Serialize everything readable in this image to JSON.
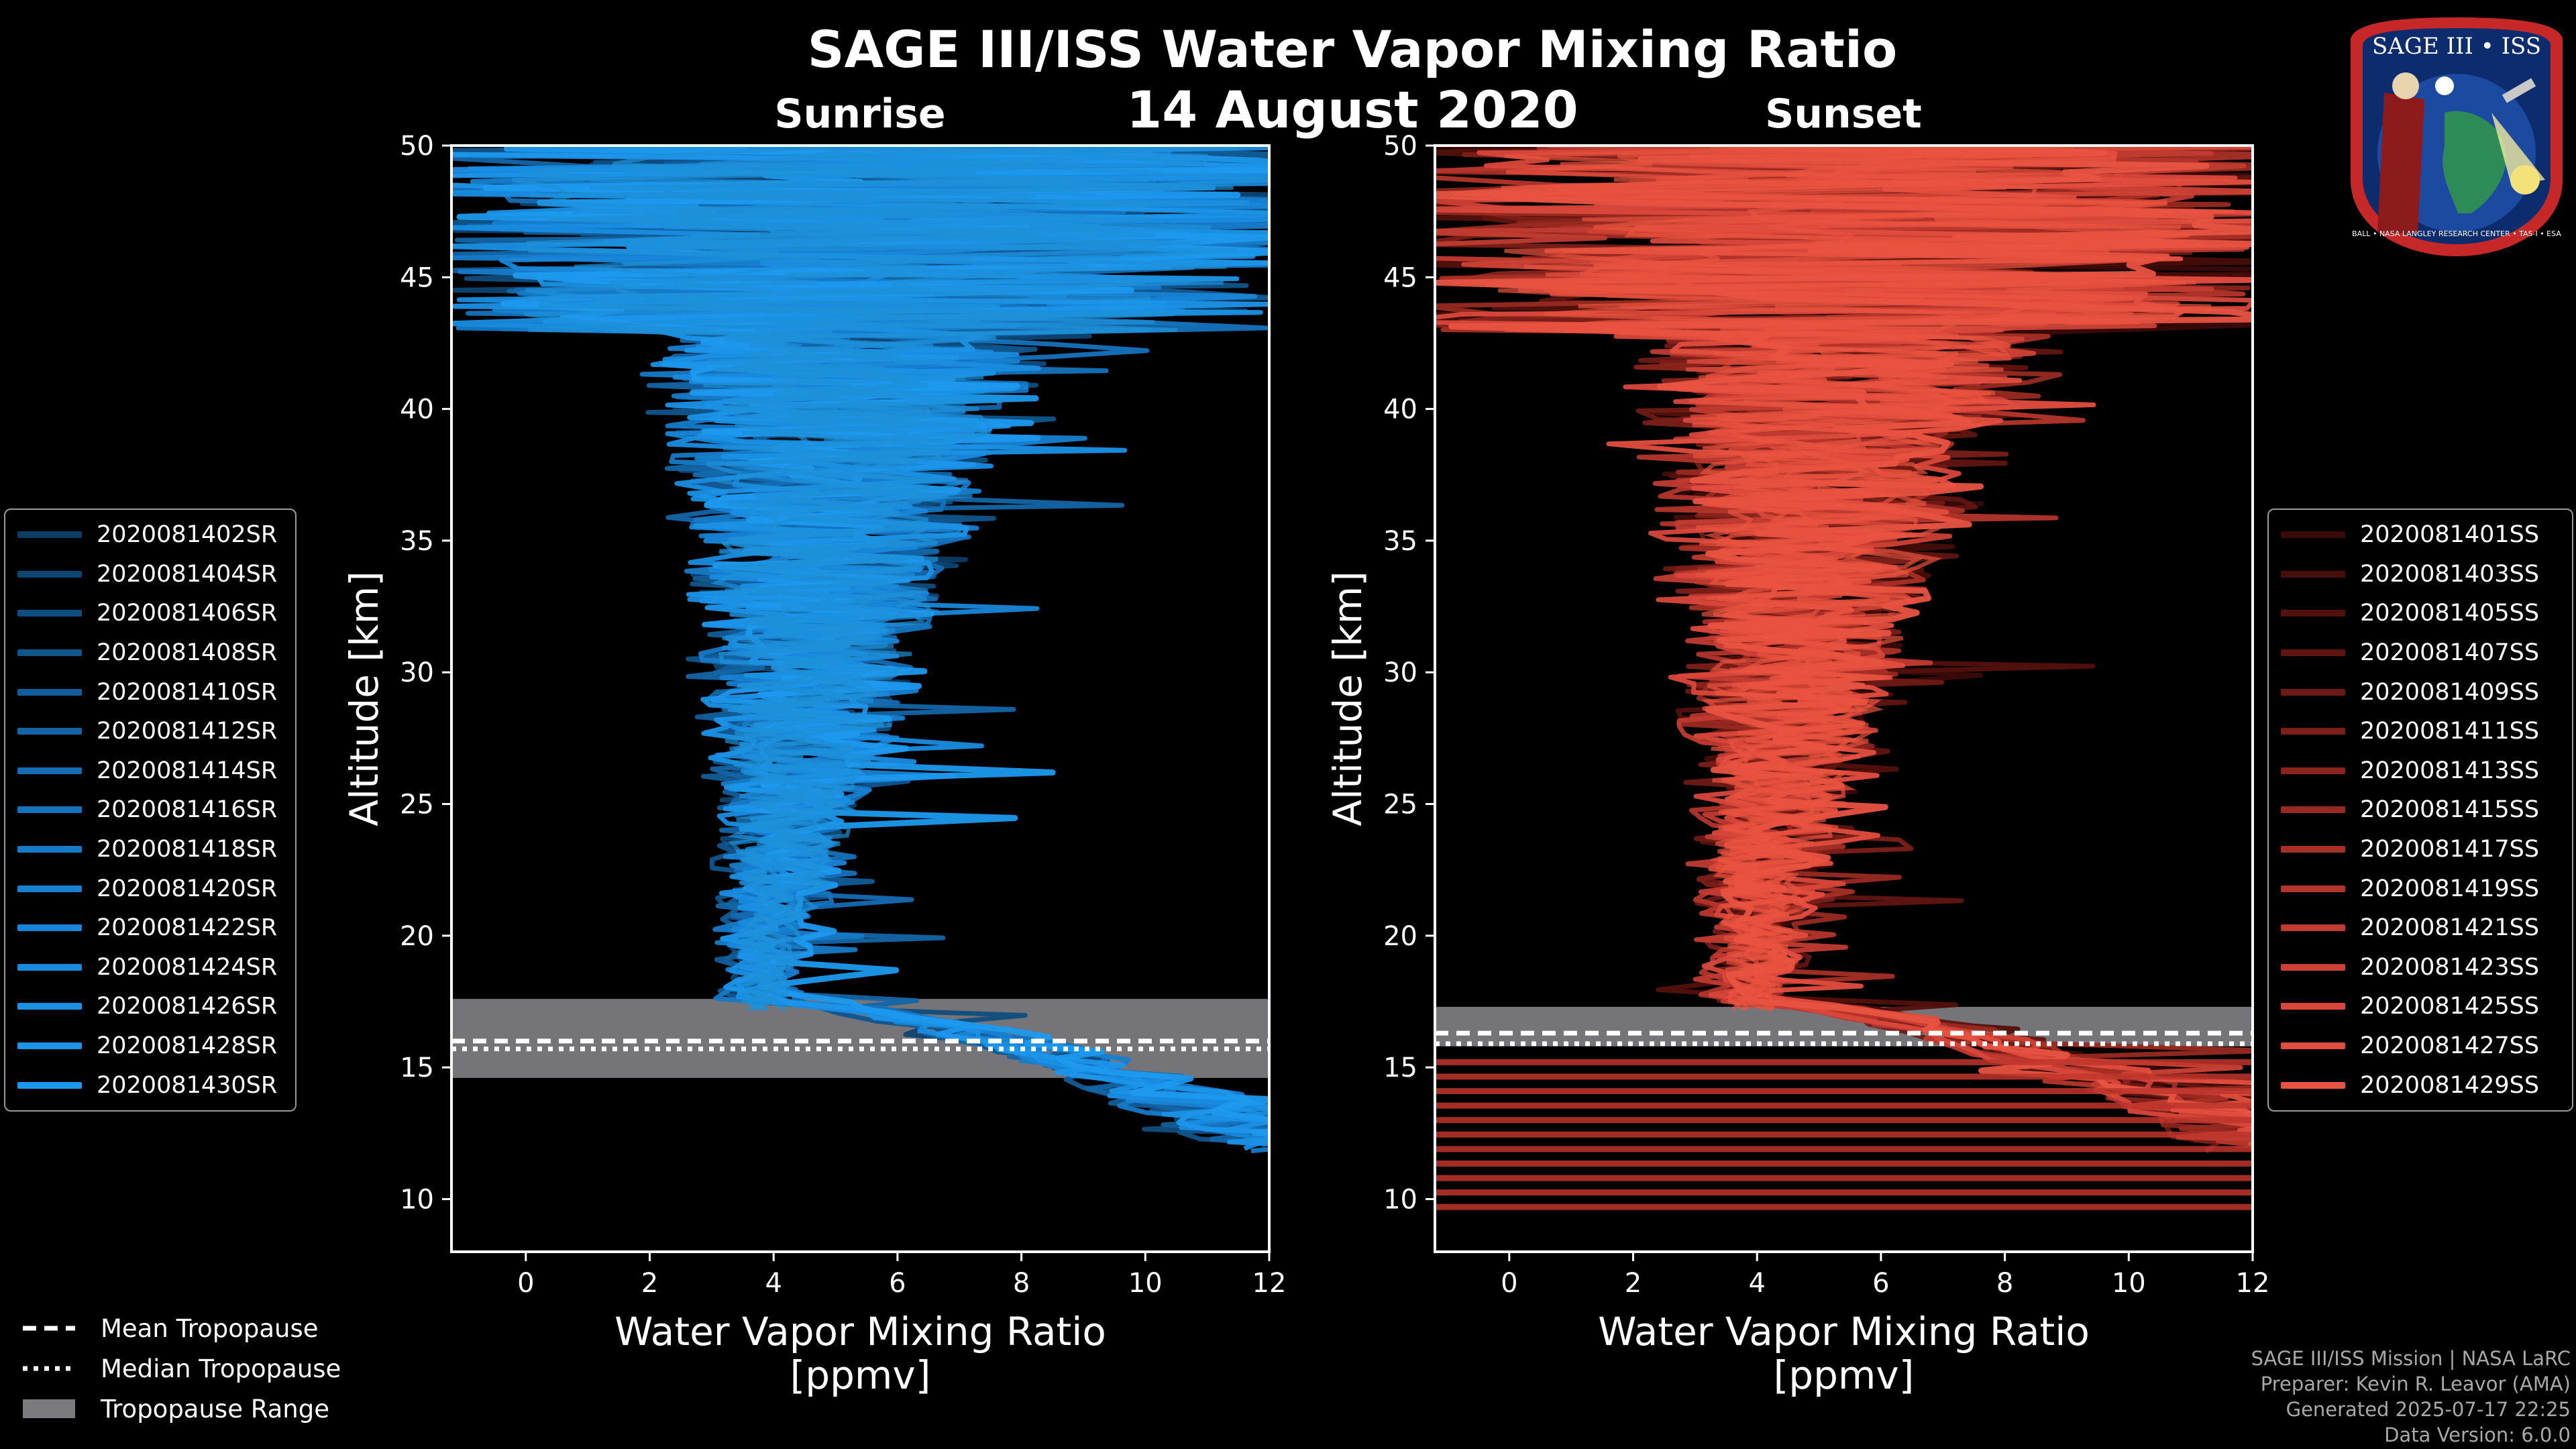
{
  "title": "SAGE III/ISS Water Vapor Mixing Ratio",
  "subtitle_date": "14 August 2020",
  "credits": [
    "SAGE III/ISS Mission | NASA LaRC",
    "Preparer: Kevin R. Leavor (AMA)",
    "Generated 2025-07-17 22:25",
    "Data Version: 6.0.0"
  ],
  "logo": {
    "text_top": "SAGE III • ISS",
    "text_ring": "BALL • NASA LANGLEY RESEARCH CENTER • TAS-I • ESA"
  },
  "tropopause_legend": {
    "mean": "Mean Tropopause",
    "median": "Median Tropopause",
    "range": "Tropopause Range"
  },
  "chart_data": [
    {
      "type": "line",
      "title": "Sunrise",
      "xlabel": "Water Vapor Mixing Ratio\n[ppmv]",
      "ylabel": "Altitude [km]",
      "xlim": [
        -1.2,
        12
      ],
      "ylim": [
        8,
        50
      ],
      "xticks": [
        0,
        2,
        4,
        6,
        8,
        10,
        12
      ],
      "yticks": [
        10,
        15,
        20,
        25,
        30,
        35,
        40,
        45,
        50
      ],
      "tropopause": {
        "mean": 16.0,
        "median": 15.7,
        "range": [
          14.6,
          17.6
        ]
      },
      "color_base": "#1e90d8",
      "series": [
        {
          "name": "2020081402SR",
          "color": "#0c3d63"
        },
        {
          "name": "2020081404SR",
          "color": "#0d4571"
        },
        {
          "name": "2020081406SR",
          "color": "#0f4d7e"
        },
        {
          "name": "2020081408SR",
          "color": "#10558c"
        },
        {
          "name": "2020081410SR",
          "color": "#125d99"
        },
        {
          "name": "2020081412SR",
          "color": "#1365a6"
        },
        {
          "name": "2020081414SR",
          "color": "#146cb2"
        },
        {
          "name": "2020081416SR",
          "color": "#1573bd"
        },
        {
          "name": "2020081418SR",
          "color": "#167ac8"
        },
        {
          "name": "2020081420SR",
          "color": "#1780d1"
        },
        {
          "name": "2020081422SR",
          "color": "#1886d9"
        },
        {
          "name": "2020081424SR",
          "color": "#198ce0"
        },
        {
          "name": "2020081426SR",
          "color": "#1a91e5"
        },
        {
          "name": "2020081428SR",
          "color": "#1b95ea"
        },
        {
          "name": "2020081430SR",
          "color": "#1c99ee"
        }
      ]
    },
    {
      "type": "line",
      "title": "Sunset",
      "xlabel": "Water Vapor Mixing Ratio\n[ppmv]",
      "ylabel": "Altitude [km]",
      "xlim": [
        -1.2,
        12
      ],
      "ylim": [
        8,
        50
      ],
      "xticks": [
        0,
        2,
        4,
        6,
        8,
        10,
        12
      ],
      "yticks": [
        10,
        15,
        20,
        25,
        30,
        35,
        40,
        45,
        50
      ],
      "tropopause": {
        "mean": 16.3,
        "median": 15.9,
        "range": [
          15.8,
          17.3
        ]
      },
      "color_base": "#e8533f",
      "series": [
        {
          "name": "2020081401SS",
          "color": "#3a0a08"
        },
        {
          "name": "2020081403SS",
          "color": "#460d0a"
        },
        {
          "name": "2020081405SS",
          "color": "#53110d"
        },
        {
          "name": "2020081407SS",
          "color": "#601510"
        },
        {
          "name": "2020081409SS",
          "color": "#6e1a14"
        },
        {
          "name": "2020081411SS",
          "color": "#7c1f18"
        },
        {
          "name": "2020081413SS",
          "color": "#8a241c"
        },
        {
          "name": "2020081415SS",
          "color": "#982a21"
        },
        {
          "name": "2020081417SS",
          "color": "#a62f26"
        },
        {
          "name": "2020081419SS",
          "color": "#b4352b"
        },
        {
          "name": "2020081421SS",
          "color": "#c13b30"
        },
        {
          "name": "2020081423SS",
          "color": "#cd4135"
        },
        {
          "name": "2020081425SS",
          "color": "#d8473a"
        },
        {
          "name": "2020081427SS",
          "color": "#e14d3e"
        },
        {
          "name": "2020081429SS",
          "color": "#e85341"
        }
      ]
    }
  ]
}
